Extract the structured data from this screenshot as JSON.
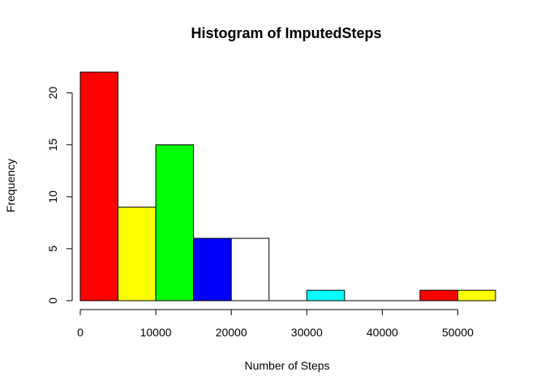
{
  "chart_data": {
    "type": "bar",
    "title": "Histogram of ImputedSteps",
    "xlabel": "Number of Steps",
    "ylabel": "Frequency",
    "bin_width": 5000,
    "bins": [
      {
        "start": 0,
        "end": 5000,
        "count": 22,
        "color": "#ff0000"
      },
      {
        "start": 5000,
        "end": 10000,
        "count": 9,
        "color": "#ffff00"
      },
      {
        "start": 10000,
        "end": 15000,
        "count": 15,
        "color": "#00ff00"
      },
      {
        "start": 15000,
        "end": 20000,
        "count": 6,
        "color": "#0000ff"
      },
      {
        "start": 20000,
        "end": 25000,
        "count": 6,
        "color": "#ffffff"
      },
      {
        "start": 25000,
        "end": 30000,
        "count": 0,
        "color": "#ff0000"
      },
      {
        "start": 30000,
        "end": 35000,
        "count": 1,
        "color": "#00ffff"
      },
      {
        "start": 35000,
        "end": 40000,
        "count": 0,
        "color": "#ff0000"
      },
      {
        "start": 40000,
        "end": 45000,
        "count": 0,
        "color": "#ff0000"
      },
      {
        "start": 45000,
        "end": 50000,
        "count": 1,
        "color": "#ff0000"
      },
      {
        "start": 50000,
        "end": 55000,
        "count": 1,
        "color": "#ffff00"
      }
    ],
    "x_ticks": [
      "0",
      "10000",
      "20000",
      "30000",
      "40000",
      "50000"
    ],
    "y_ticks": [
      "0",
      "5",
      "10",
      "15",
      "20"
    ],
    "xlim": [
      0,
      55000
    ],
    "ylim": [
      0,
      22
    ],
    "grid": false
  }
}
